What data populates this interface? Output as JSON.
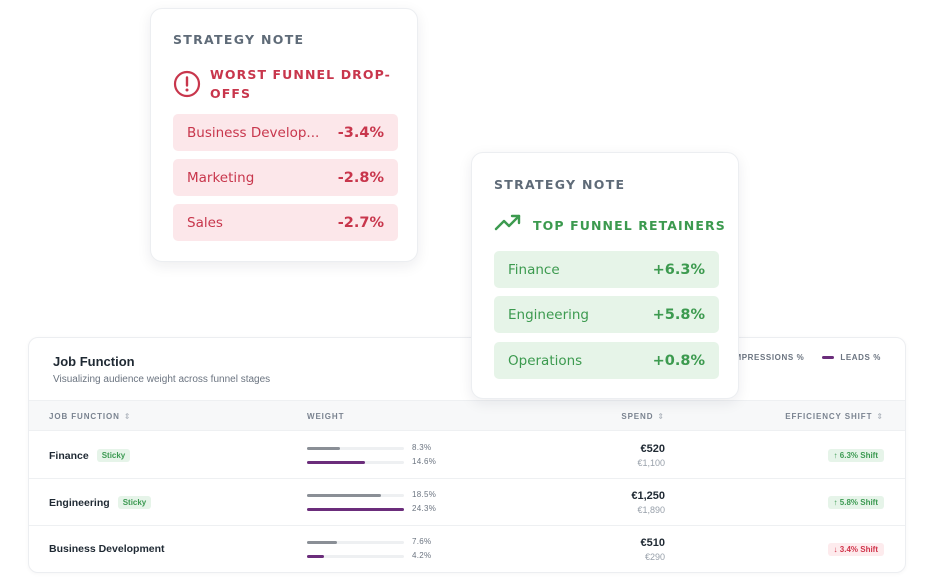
{
  "table": {
    "title": "Job Function",
    "subtitle": "Visualizing audience weight across funnel stages",
    "legend": [
      {
        "label": "IMPRESSIONS %",
        "color": "#8a8f96"
      },
      {
        "label": "LEADS %",
        "color": "#6b2d7b"
      }
    ],
    "columns": {
      "job_function": "JOB FUNCTION",
      "weight": "WEIGHT",
      "spend": "SPEND",
      "efficiency": "EFFICIENCY SHIFT"
    },
    "rows": [
      {
        "name": "Finance",
        "badge": "Sticky",
        "impressions": 8.3,
        "impressions_label": "8.3%",
        "leads": 14.6,
        "leads_label": "14.6%",
        "spend": "€520",
        "spend_sub": "€1,100",
        "shift": "↑ 6.3% Shift",
        "shift_dir": "up"
      },
      {
        "name": "Engineering",
        "badge": "Sticky",
        "impressions": 18.5,
        "impressions_label": "18.5%",
        "leads": 24.3,
        "leads_label": "24.3%",
        "spend": "€1,250",
        "spend_sub": "€1,890",
        "shift": "↑ 5.8% Shift",
        "shift_dir": "up"
      },
      {
        "name": "Business Development",
        "badge": "",
        "impressions": 7.6,
        "impressions_label": "7.6%",
        "leads": 4.2,
        "leads_label": "4.2%",
        "spend": "€510",
        "spend_sub": "€290",
        "shift": "↓ 3.4% Shift",
        "shift_dir": "down"
      }
    ],
    "bar_max": 24.3
  },
  "note_dropoffs": {
    "eyebrow": "STRATEGY NOTE",
    "heading_line1": "WORST FUNNEL DROP-",
    "heading_line2": "OFFS",
    "icon": "alert-circle-icon",
    "color": "#c8364c",
    "items": [
      {
        "label": "Business Develop...",
        "value": "-3.4%"
      },
      {
        "label": "Marketing",
        "value": "-2.8%"
      },
      {
        "label": "Sales",
        "value": "-2.7%"
      }
    ]
  },
  "note_retainers": {
    "eyebrow": "STRATEGY NOTE",
    "heading": "TOP FUNNEL RETAINERS",
    "icon": "trending-up-icon",
    "color": "#3c9a4f",
    "items": [
      {
        "label": "Finance",
        "value": "+6.3%"
      },
      {
        "label": "Engineering",
        "value": "+5.8%"
      },
      {
        "label": "Operations",
        "value": "+0.8%"
      }
    ]
  }
}
